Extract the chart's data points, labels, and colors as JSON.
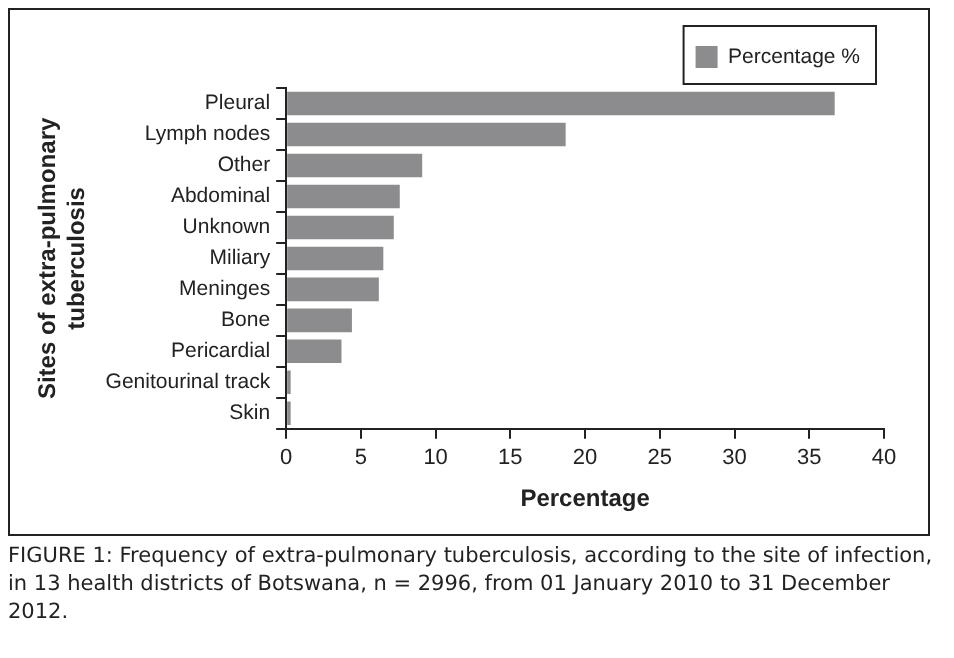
{
  "chart_data": {
    "type": "bar",
    "orientation": "horizontal",
    "categories": [
      "Pleural",
      "Lymph nodes",
      "Other",
      "Abdominal",
      "Unknown",
      "Miliary",
      "Meninges",
      "Bone",
      "Pericardial",
      "Genitourinal track",
      "Skin"
    ],
    "series": [
      {
        "name": "Percentage %",
        "color": "#8c8c8e",
        "values": [
          36.7,
          18.7,
          9.1,
          7.6,
          7.2,
          6.5,
          6.2,
          4.4,
          3.7,
          0.3,
          0.3
        ]
      }
    ],
    "xlim": [
      0,
      40
    ],
    "xticks": [
      0,
      5,
      10,
      15,
      20,
      25,
      30,
      35,
      40
    ],
    "xlabel": "Percentage",
    "ylabel": "Sites of extra-pulmonary\ntuberculosis",
    "grid": false,
    "legend": "top right",
    "annotations": [
      "FIGURE 1: Frequency of extra-pulmonary tuberculosis, according to the site of infection, in 13 health districts of Botswana, n = 2996, from 01 January 2010 to 31 December 2012."
    ]
  }
}
